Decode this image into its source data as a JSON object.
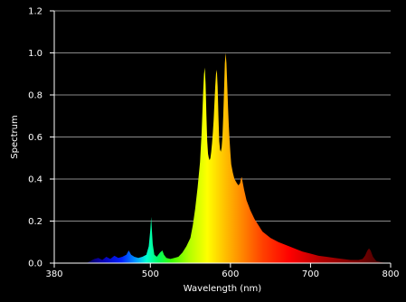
{
  "colors": {
    "background": "#000000",
    "text": "#ffffff",
    "grid": "#8a8a8a",
    "axis": "#ffffff"
  },
  "chart_data": {
    "type": "area",
    "title": "",
    "xlabel": "Wavelength (nm)",
    "ylabel": "Spectrum",
    "xlim": [
      380,
      800
    ],
    "ylim": [
      0,
      1.2
    ],
    "grid": true,
    "fill": "wavelength-colored spectrum",
    "x_ticks": [
      {
        "value": 380,
        "label": "380"
      },
      {
        "value": 500,
        "label": "500"
      },
      {
        "value": 600,
        "label": "600"
      },
      {
        "value": 700,
        "label": "700"
      },
      {
        "value": 800,
        "label": "800"
      }
    ],
    "y_ticks": [
      {
        "value": 0,
        "label": "0.0"
      },
      {
        "value": 0.2,
        "label": "0.2"
      },
      {
        "value": 0.4,
        "label": "0.4"
      },
      {
        "value": 0.6,
        "label": "0.6"
      },
      {
        "value": 0.8,
        "label": "0.8"
      },
      {
        "value": 1.0,
        "label": "1.0"
      },
      {
        "value": 1.2,
        "label": "1.2"
      }
    ],
    "series": [
      {
        "x": [
          380,
          420,
          430,
          435,
          440,
          445,
          450,
          455,
          460,
          465,
          470,
          473,
          476,
          480,
          485,
          490,
          495,
          498,
          500,
          501,
          502,
          503,
          505,
          508,
          512,
          515,
          517,
          520,
          525,
          530,
          535,
          540,
          545,
          550,
          553,
          556,
          559,
          562,
          564,
          565,
          566,
          567,
          568,
          569,
          570,
          571,
          572,
          573,
          574,
          575,
          576,
          577,
          578,
          579,
          580,
          581,
          582,
          583,
          584,
          585,
          586,
          587,
          588,
          589,
          590,
          591,
          592,
          593,
          594,
          595,
          596,
          597,
          598,
          599,
          600,
          601,
          603,
          605,
          608,
          610,
          612,
          613,
          614,
          615,
          617,
          620,
          625,
          630,
          635,
          640,
          650,
          660,
          670,
          680,
          690,
          700,
          710,
          720,
          730,
          740,
          750,
          760,
          765,
          768,
          771,
          773,
          775,
          778,
          782,
          790,
          800
        ],
        "y": [
          0,
          0,
          0.02,
          0.025,
          0.015,
          0.03,
          0.02,
          0.035,
          0.025,
          0.03,
          0.04,
          0.06,
          0.04,
          0.03,
          0.025,
          0.03,
          0.04,
          0.08,
          0.16,
          0.22,
          0.15,
          0.09,
          0.04,
          0.03,
          0.05,
          0.06,
          0.04,
          0.025,
          0.02,
          0.025,
          0.03,
          0.05,
          0.08,
          0.12,
          0.18,
          0.26,
          0.36,
          0.48,
          0.62,
          0.72,
          0.82,
          0.9,
          0.93,
          0.85,
          0.7,
          0.58,
          0.52,
          0.5,
          0.49,
          0.5,
          0.53,
          0.57,
          0.62,
          0.68,
          0.76,
          0.84,
          0.9,
          0.92,
          0.84,
          0.7,
          0.58,
          0.54,
          0.53,
          0.55,
          0.6,
          0.7,
          0.82,
          0.95,
          1.0,
          0.95,
          0.85,
          0.74,
          0.65,
          0.58,
          0.52,
          0.47,
          0.43,
          0.4,
          0.38,
          0.37,
          0.38,
          0.4,
          0.41,
          0.39,
          0.35,
          0.3,
          0.25,
          0.21,
          0.18,
          0.15,
          0.12,
          0.1,
          0.085,
          0.07,
          0.055,
          0.045,
          0.035,
          0.03,
          0.025,
          0.02,
          0.015,
          0.015,
          0.02,
          0.035,
          0.06,
          0.07,
          0.06,
          0.03,
          0.01,
          0.003,
          0
        ]
      }
    ]
  }
}
